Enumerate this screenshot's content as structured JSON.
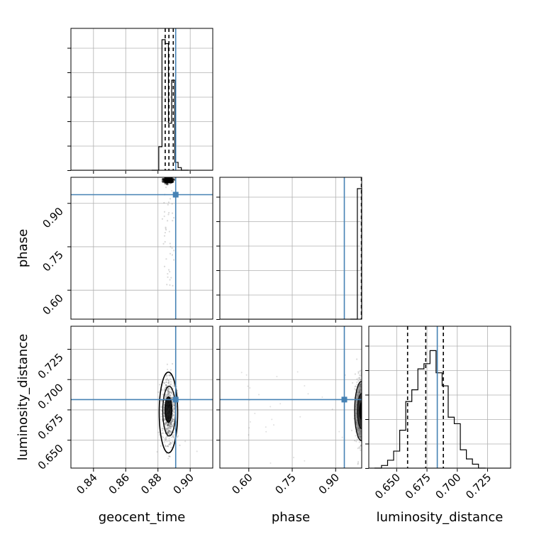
{
  "chart_data": {
    "type": "corner",
    "parameters": [
      "geocent_time",
      "phase",
      "luminosity_distance"
    ],
    "axis_labels": {
      "geocent_time": "geocent_time",
      "phase": "phase",
      "luminosity_distance": "luminosity_distance"
    },
    "truths": {
      "geocent_time": 0.891,
      "phase": 0.93,
      "luminosity_distance": 0.6835
    },
    "truth_color": "#4682b4",
    "ranges": {
      "geocent_time": [
        0.826,
        0.914
      ],
      "phase": [
        0.5,
        0.99
      ],
      "luminosity_distance": [
        0.627,
        0.744
      ]
    },
    "ticks": {
      "geocent_time": [
        {
          "value": 0.84,
          "label": "0.84"
        },
        {
          "value": 0.86,
          "label": "0.86"
        },
        {
          "value": 0.88,
          "label": "0.88"
        },
        {
          "value": 0.9,
          "label": "0.90"
        }
      ],
      "phase": [
        {
          "value": 0.6,
          "label": "0.60"
        },
        {
          "value": 0.75,
          "label": "0.75"
        },
        {
          "value": 0.9,
          "label": "0.90"
        }
      ],
      "luminosity_distance": [
        {
          "value": 0.65,
          "label": "0.650"
        },
        {
          "value": 0.675,
          "label": "0.675"
        },
        {
          "value": 0.7,
          "label": "0.700"
        },
        {
          "value": 0.725,
          "label": "0.725"
        }
      ]
    },
    "histograms": {
      "geocent_time": {
        "bin_edges": [
          0.8805,
          0.8825,
          0.8845,
          0.8865,
          0.8885,
          0.8905,
          0.8925,
          0.8945
        ],
        "counts": [
          0.18,
          1.0,
          0.97,
          0.36,
          0.69,
          0.06,
          0.02
        ],
        "quantiles": [
          0.8845,
          0.8868,
          0.8895
        ]
      },
      "phase": {
        "bin_edges": [
          0.975,
          0.99
        ],
        "counts": [
          1.0
        ],
        "quantiles": [
          0.989
        ]
      },
      "luminosity_distance": {
        "bin_edges": [
          0.6375,
          0.6425,
          0.6475,
          0.6525,
          0.6575,
          0.6625,
          0.6675,
          0.6725,
          0.6775,
          0.6825,
          0.6875,
          0.6925,
          0.6975,
          0.7025,
          0.7075,
          0.7125,
          0.7175
        ],
        "counts": [
          0.02,
          0.06,
          0.13,
          0.29,
          0.51,
          0.6,
          0.76,
          0.8,
          0.9,
          0.73,
          0.63,
          0.39,
          0.34,
          0.14,
          0.07,
          0.03
        ],
        "quantiles": [
          0.659,
          0.674,
          0.6885
        ]
      }
    },
    "grid": true
  }
}
